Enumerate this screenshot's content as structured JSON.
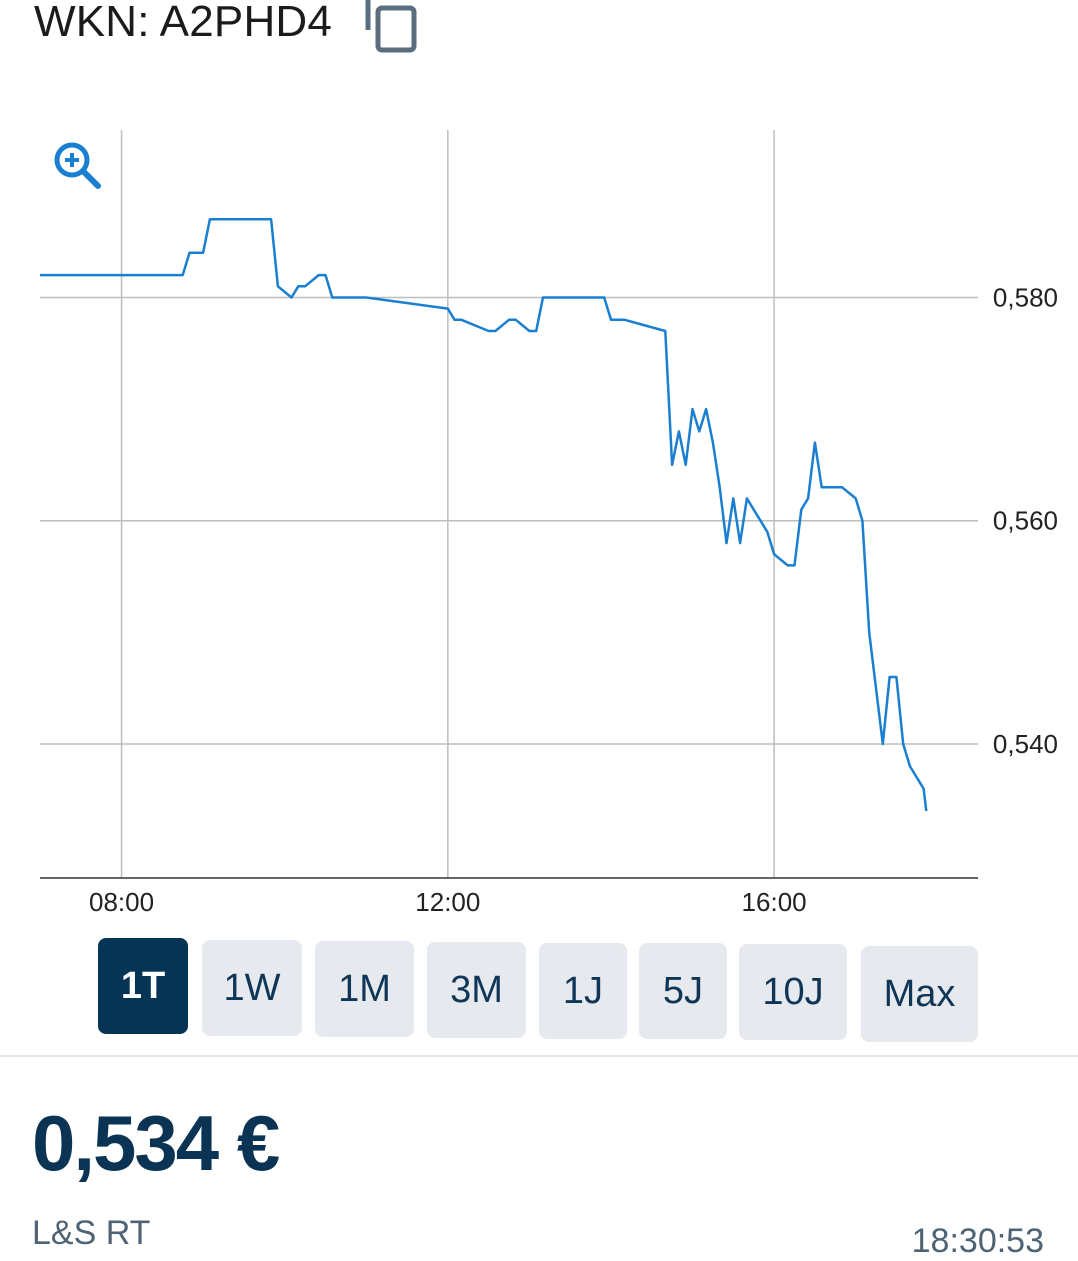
{
  "header": {
    "wkn_label": "WKN: A2PHD4"
  },
  "icons": {
    "copy": "copy-icon",
    "zoom": "zoom-in-icon"
  },
  "colors": {
    "line": "#1a7fd0",
    "grid": "#bdbdbd",
    "tab_active_bg": "#053455",
    "tab_bg": "#e6e9ee",
    "price": "#0b3454"
  },
  "chart_data": {
    "type": "line",
    "title": "",
    "xlabel": "",
    "ylabel": "",
    "x_ticks": [
      "08:00",
      "12:00",
      "16:00"
    ],
    "y_ticks": [
      "0,580",
      "0,560",
      "0,540"
    ],
    "y_tick_values": [
      0.58,
      0.56,
      0.54
    ],
    "xlim": [
      "07:00",
      "18:30"
    ],
    "ylim": [
      0.528,
      0.595
    ],
    "grid": true,
    "series": [
      {
        "x": [
          "07:00",
          "08:45",
          "08:50",
          "09:00",
          "09:05",
          "09:50",
          "09:55",
          "10:05",
          "10:10",
          "10:15",
          "10:25",
          "10:30",
          "10:35",
          "10:40",
          "10:45",
          "11:00",
          "12:00",
          "12:05",
          "12:10",
          "12:30",
          "12:35",
          "12:45",
          "12:50",
          "13:00",
          "13:05",
          "13:10",
          "13:15",
          "13:55",
          "14:00",
          "14:05",
          "14:10",
          "14:40",
          "14:45",
          "14:50",
          "14:55",
          "15:00",
          "15:05",
          "15:10",
          "15:15",
          "15:20",
          "15:25",
          "15:30",
          "15:35",
          "15:40",
          "15:45",
          "15:50",
          "15:55",
          "16:00",
          "16:10",
          "16:15",
          "16:20",
          "16:25",
          "16:30",
          "16:35",
          "16:40",
          "16:45",
          "16:50",
          "17:00",
          "17:05",
          "17:10",
          "17:15",
          "17:20",
          "17:25",
          "17:30",
          "17:35",
          "17:40",
          "17:45",
          "17:50",
          "17:52"
        ],
        "y": [
          0.582,
          0.582,
          0.584,
          0.584,
          0.587,
          0.587,
          0.581,
          0.58,
          0.581,
          0.581,
          0.582,
          0.582,
          0.58,
          0.58,
          0.58,
          0.58,
          0.579,
          0.578,
          0.578,
          0.577,
          0.577,
          0.578,
          0.578,
          0.577,
          0.577,
          0.58,
          0.58,
          0.58,
          0.578,
          0.578,
          0.578,
          0.577,
          0.565,
          0.568,
          0.565,
          0.57,
          0.568,
          0.57,
          0.567,
          0.563,
          0.558,
          0.562,
          0.558,
          0.562,
          0.561,
          0.56,
          0.559,
          0.557,
          0.556,
          0.556,
          0.561,
          0.562,
          0.567,
          0.563,
          0.563,
          0.563,
          0.563,
          0.562,
          0.56,
          0.55,
          0.545,
          0.54,
          0.546,
          0.546,
          0.54,
          0.538,
          0.537,
          0.536,
          0.534
        ]
      }
    ]
  },
  "tabs": [
    {
      "label": "1T",
      "active": true
    },
    {
      "label": "1W",
      "active": false
    },
    {
      "label": "1M",
      "active": false
    },
    {
      "label": "3M",
      "active": false
    },
    {
      "label": "1J",
      "active": false
    },
    {
      "label": "5J",
      "active": false
    },
    {
      "label": "10J",
      "active": false
    },
    {
      "label": "Max",
      "active": false
    }
  ],
  "quote": {
    "price": "0,534 €",
    "exchange": "L&S RT",
    "time": "18:30:53"
  }
}
